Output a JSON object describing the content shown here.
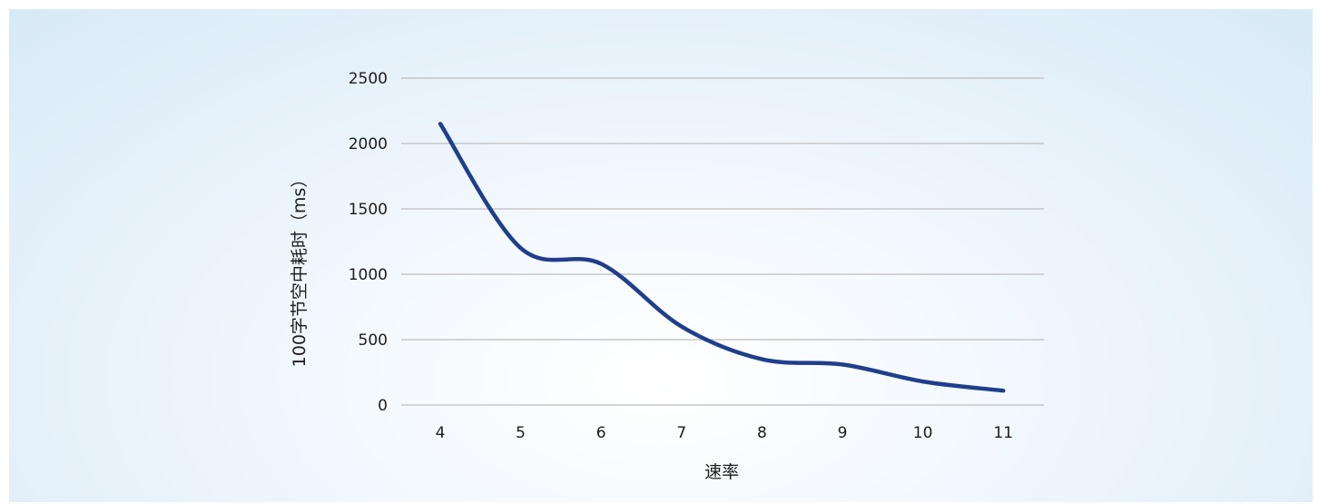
{
  "chart_data": {
    "type": "line",
    "title": "",
    "xlabel": "速率",
    "ylabel": "100字节空中耗时（ms）",
    "x": [
      4,
      5,
      6,
      7,
      8,
      9,
      10,
      11
    ],
    "x_tick_labels": [
      "4",
      "5",
      "6",
      "7",
      "8",
      "9",
      "10",
      "11"
    ],
    "y_tick_labels": [
      "0",
      "500",
      "1000",
      "1500",
      "2000",
      "2500"
    ],
    "y_ticks": [
      0,
      500,
      1000,
      1500,
      2000,
      2500
    ],
    "ylim": [
      0,
      2500
    ],
    "series": [
      {
        "values": [
          2150,
          1200,
          1080,
          600,
          350,
          310,
          180,
          110
        ],
        "color": "#1f3f8c"
      }
    ],
    "grid": true,
    "legend": "none",
    "gridline_color": "#bdbdbd",
    "background_color": "#e4f0fa"
  }
}
